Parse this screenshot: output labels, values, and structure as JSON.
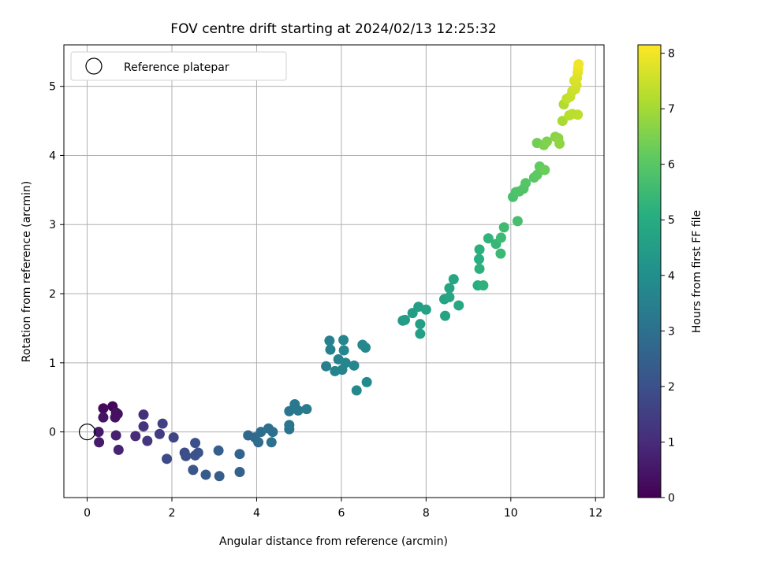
{
  "chart_data": {
    "type": "scatter",
    "title": "FOV centre drift starting at 2024/02/13 12:25:32",
    "xlabel": "Angular distance from reference (arcmin)",
    "ylabel": "Rotation from reference (arcmin)",
    "xlim": [
      -0.55,
      12.2
    ],
    "ylim": [
      -0.95,
      5.6
    ],
    "xticks": [
      0,
      2,
      4,
      6,
      8,
      10,
      12
    ],
    "yticks": [
      0,
      1,
      2,
      3,
      4,
      5
    ],
    "grid": true,
    "legend": {
      "position": "top-left",
      "entries": [
        "Reference platepar"
      ]
    },
    "reference_point": {
      "x": 0,
      "y": 0,
      "label": "Reference platepar"
    },
    "colorbar": {
      "label": "Hours from first FF file",
      "range": [
        0,
        8.15
      ],
      "ticks": [
        0,
        1,
        2,
        3,
        4,
        5,
        6,
        7,
        8
      ],
      "colormap": "viridis"
    },
    "points": [
      {
        "x": 0.6,
        "y": 0.37,
        "h": 0.1
      },
      {
        "x": 0.38,
        "y": 0.34,
        "h": 0.2
      },
      {
        "x": 0.68,
        "y": 0.28,
        "h": 0.3
      },
      {
        "x": 0.72,
        "y": 0.26,
        "h": 0.35
      },
      {
        "x": 0.66,
        "y": 0.21,
        "h": 0.4
      },
      {
        "x": 0.38,
        "y": 0.21,
        "h": 0.45
      },
      {
        "x": 0.27,
        "y": 0.0,
        "h": 0.55
      },
      {
        "x": 0.28,
        "y": -0.15,
        "h": 0.6
      },
      {
        "x": 0.68,
        "y": -0.05,
        "h": 0.7
      },
      {
        "x": 0.74,
        "y": -0.26,
        "h": 0.8
      },
      {
        "x": 1.14,
        "y": -0.06,
        "h": 0.95
      },
      {
        "x": 1.33,
        "y": 0.25,
        "h": 1.1
      },
      {
        "x": 1.33,
        "y": 0.08,
        "h": 1.2
      },
      {
        "x": 1.42,
        "y": -0.13,
        "h": 1.3
      },
      {
        "x": 1.71,
        "y": -0.03,
        "h": 1.45
      },
      {
        "x": 1.78,
        "y": 0.12,
        "h": 1.55
      },
      {
        "x": 2.04,
        "y": -0.08,
        "h": 1.7
      },
      {
        "x": 1.88,
        "y": -0.39,
        "h": 1.8
      },
      {
        "x": 2.3,
        "y": -0.3,
        "h": 1.9
      },
      {
        "x": 2.33,
        "y": -0.35,
        "h": 1.95
      },
      {
        "x": 2.55,
        "y": -0.16,
        "h": 2.0
      },
      {
        "x": 2.55,
        "y": -0.34,
        "h": 2.05
      },
      {
        "x": 2.62,
        "y": -0.3,
        "h": 2.1
      },
      {
        "x": 2.5,
        "y": -0.55,
        "h": 2.2
      },
      {
        "x": 2.8,
        "y": -0.62,
        "h": 2.3
      },
      {
        "x": 3.12,
        "y": -0.64,
        "h": 2.4
      },
      {
        "x": 3.1,
        "y": -0.27,
        "h": 2.45
      },
      {
        "x": 3.6,
        "y": -0.58,
        "h": 2.55
      },
      {
        "x": 3.6,
        "y": -0.32,
        "h": 2.6
      },
      {
        "x": 3.8,
        "y": -0.05,
        "h": 2.75
      },
      {
        "x": 3.96,
        "y": -0.08,
        "h": 2.8
      },
      {
        "x": 4.04,
        "y": -0.15,
        "h": 2.85
      },
      {
        "x": 4.1,
        "y": 0.0,
        "h": 2.9
      },
      {
        "x": 4.28,
        "y": 0.05,
        "h": 2.95
      },
      {
        "x": 4.38,
        "y": 0.0,
        "h": 3.0
      },
      {
        "x": 4.35,
        "y": -0.15,
        "h": 3.05
      },
      {
        "x": 4.77,
        "y": 0.04,
        "h": 3.1
      },
      {
        "x": 4.77,
        "y": 0.1,
        "h": 3.15
      },
      {
        "x": 4.77,
        "y": 0.3,
        "h": 3.2
      },
      {
        "x": 4.9,
        "y": 0.4,
        "h": 3.25
      },
      {
        "x": 4.98,
        "y": 0.31,
        "h": 3.3
      },
      {
        "x": 5.18,
        "y": 0.33,
        "h": 3.35
      },
      {
        "x": 5.64,
        "y": 0.95,
        "h": 3.45
      },
      {
        "x": 5.72,
        "y": 1.32,
        "h": 3.5
      },
      {
        "x": 5.74,
        "y": 1.19,
        "h": 3.55
      },
      {
        "x": 5.85,
        "y": 0.88,
        "h": 3.6
      },
      {
        "x": 5.93,
        "y": 1.05,
        "h": 3.62
      },
      {
        "x": 6.02,
        "y": 0.9,
        "h": 3.65
      },
      {
        "x": 6.05,
        "y": 1.33,
        "h": 3.68
      },
      {
        "x": 6.06,
        "y": 1.18,
        "h": 3.7
      },
      {
        "x": 6.1,
        "y": 1.0,
        "h": 3.72
      },
      {
        "x": 6.3,
        "y": 0.96,
        "h": 3.75
      },
      {
        "x": 6.36,
        "y": 0.6,
        "h": 3.78
      },
      {
        "x": 6.5,
        "y": 1.26,
        "h": 3.8
      },
      {
        "x": 6.57,
        "y": 1.22,
        "h": 3.82
      },
      {
        "x": 6.6,
        "y": 0.72,
        "h": 3.85
      },
      {
        "x": 7.45,
        "y": 1.61,
        "h": 4.4
      },
      {
        "x": 7.5,
        "y": 1.62,
        "h": 4.45
      },
      {
        "x": 7.68,
        "y": 1.72,
        "h": 4.5
      },
      {
        "x": 7.82,
        "y": 1.81,
        "h": 4.55
      },
      {
        "x": 7.86,
        "y": 1.56,
        "h": 4.58
      },
      {
        "x": 7.86,
        "y": 1.42,
        "h": 4.6
      },
      {
        "x": 8.0,
        "y": 1.77,
        "h": 4.65
      },
      {
        "x": 8.43,
        "y": 1.92,
        "h": 4.7
      },
      {
        "x": 8.45,
        "y": 1.68,
        "h": 4.72
      },
      {
        "x": 8.55,
        "y": 2.08,
        "h": 4.75
      },
      {
        "x": 8.55,
        "y": 1.95,
        "h": 4.8
      },
      {
        "x": 8.65,
        "y": 2.21,
        "h": 4.85
      },
      {
        "x": 8.77,
        "y": 1.83,
        "h": 4.9
      },
      {
        "x": 9.22,
        "y": 2.12,
        "h": 5.05
      },
      {
        "x": 9.25,
        "y": 2.5,
        "h": 5.1
      },
      {
        "x": 9.26,
        "y": 2.64,
        "h": 5.15
      },
      {
        "x": 9.26,
        "y": 2.36,
        "h": 5.18
      },
      {
        "x": 9.35,
        "y": 2.12,
        "h": 5.2
      },
      {
        "x": 9.47,
        "y": 2.8,
        "h": 5.3
      },
      {
        "x": 9.65,
        "y": 2.72,
        "h": 5.4
      },
      {
        "x": 9.76,
        "y": 2.58,
        "h": 5.45
      },
      {
        "x": 9.77,
        "y": 2.81,
        "h": 5.5
      },
      {
        "x": 9.84,
        "y": 2.96,
        "h": 5.55
      },
      {
        "x": 10.05,
        "y": 3.4,
        "h": 5.75
      },
      {
        "x": 10.12,
        "y": 3.47,
        "h": 5.8
      },
      {
        "x": 10.2,
        "y": 3.48,
        "h": 5.85
      },
      {
        "x": 10.16,
        "y": 3.05,
        "h": 5.7
      },
      {
        "x": 10.3,
        "y": 3.52,
        "h": 5.9
      },
      {
        "x": 10.35,
        "y": 3.6,
        "h": 5.95
      },
      {
        "x": 10.55,
        "y": 3.68,
        "h": 6.05
      },
      {
        "x": 10.62,
        "y": 3.72,
        "h": 6.1
      },
      {
        "x": 10.68,
        "y": 3.84,
        "h": 6.15
      },
      {
        "x": 10.8,
        "y": 3.79,
        "h": 6.25
      },
      {
        "x": 10.62,
        "y": 4.18,
        "h": 6.4
      },
      {
        "x": 10.78,
        "y": 4.15,
        "h": 6.5
      },
      {
        "x": 10.85,
        "y": 4.2,
        "h": 6.55
      },
      {
        "x": 11.05,
        "y": 4.27,
        "h": 6.65
      },
      {
        "x": 11.12,
        "y": 4.25,
        "h": 6.7
      },
      {
        "x": 11.15,
        "y": 4.17,
        "h": 6.75
      },
      {
        "x": 11.22,
        "y": 4.5,
        "h": 7.05
      },
      {
        "x": 11.25,
        "y": 4.74,
        "h": 7.15
      },
      {
        "x": 11.38,
        "y": 4.58,
        "h": 7.25
      },
      {
        "x": 11.45,
        "y": 4.6,
        "h": 7.3
      },
      {
        "x": 11.58,
        "y": 4.59,
        "h": 7.35
      },
      {
        "x": 11.32,
        "y": 4.82,
        "h": 7.4
      },
      {
        "x": 11.4,
        "y": 4.85,
        "h": 7.45
      },
      {
        "x": 11.45,
        "y": 4.93,
        "h": 7.5
      },
      {
        "x": 11.52,
        "y": 4.96,
        "h": 7.55
      },
      {
        "x": 11.55,
        "y": 5.02,
        "h": 7.6
      },
      {
        "x": 11.5,
        "y": 5.08,
        "h": 7.65
      },
      {
        "x": 11.56,
        "y": 5.12,
        "h": 7.7
      },
      {
        "x": 11.58,
        "y": 5.2,
        "h": 7.8
      },
      {
        "x": 11.59,
        "y": 5.26,
        "h": 7.9
      },
      {
        "x": 11.6,
        "y": 5.32,
        "h": 8.0
      }
    ]
  }
}
